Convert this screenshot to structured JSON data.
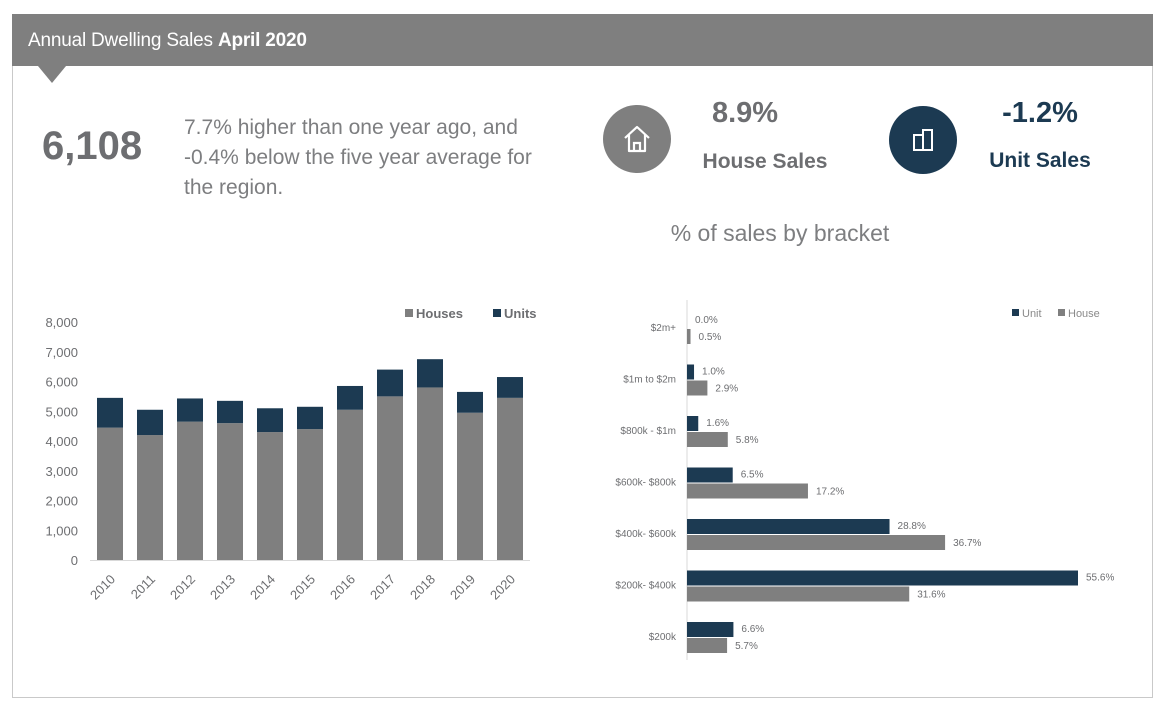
{
  "header": {
    "title_prefix": "Annual Dwelling Sales ",
    "title_bold": "April 2020"
  },
  "summary": {
    "total_sales": "6,108",
    "description": "7.7% higher than one year ago, and -0.4% below the five year average for the region."
  },
  "kpis": {
    "house": {
      "value": "8.9%",
      "label": "House Sales",
      "icon": "house-icon",
      "color": "#7f7f7f"
    },
    "unit": {
      "value": "-1.2%",
      "label": "Unit Sales",
      "icon": "unit-building-icon",
      "color": "#1c3a52"
    }
  },
  "bracket_title": "% of sales by bracket",
  "colors": {
    "houses": "#7f7f7f",
    "units": "#1c3a52"
  },
  "chart_data": [
    {
      "type": "bar",
      "stacked": true,
      "categories": [
        "2010",
        "2011",
        "2012",
        "2013",
        "2014",
        "2015",
        "2016",
        "2017",
        "2018",
        "2019",
        "2020"
      ],
      "series": [
        {
          "name": "Houses",
          "values": [
            4450,
            4200,
            4650,
            4600,
            4300,
            4400,
            5050,
            5500,
            5800,
            4950,
            5450
          ]
        },
        {
          "name": "Units",
          "values": [
            1000,
            850,
            780,
            750,
            800,
            750,
            800,
            900,
            950,
            700,
            700
          ]
        }
      ],
      "ylim": [
        0,
        8000
      ],
      "yticks": [
        "0",
        "1,000",
        "2,000",
        "3,000",
        "4,000",
        "5,000",
        "6,000",
        "7,000",
        "8,000"
      ],
      "legend_position": "top-right",
      "grid": false
    },
    {
      "type": "bar",
      "orientation": "horizontal",
      "categories": [
        "$2m+",
        "$1m to $2m",
        "$800k - $1m",
        "$600k- $800k",
        "$400k- $600k",
        "$200k- $400k",
        "$200k"
      ],
      "series": [
        {
          "name": "Unit",
          "values": [
            0.0,
            1.0,
            1.6,
            6.5,
            28.8,
            55.6,
            6.6
          ],
          "labels": [
            "0.0%",
            "1.0%",
            "1.6%",
            "6.5%",
            "28.8%",
            "55.6%",
            "6.6%"
          ]
        },
        {
          "name": "House",
          "values": [
            0.5,
            2.9,
            5.8,
            17.2,
            36.7,
            31.6,
            5.7
          ],
          "labels": [
            "0.5%",
            "2.9%",
            "5.8%",
            "17.2%",
            "36.7%",
            "31.6%",
            "5.7%"
          ]
        }
      ],
      "xlim": [
        0,
        60
      ],
      "legend_position": "top-right",
      "grid": false
    }
  ]
}
